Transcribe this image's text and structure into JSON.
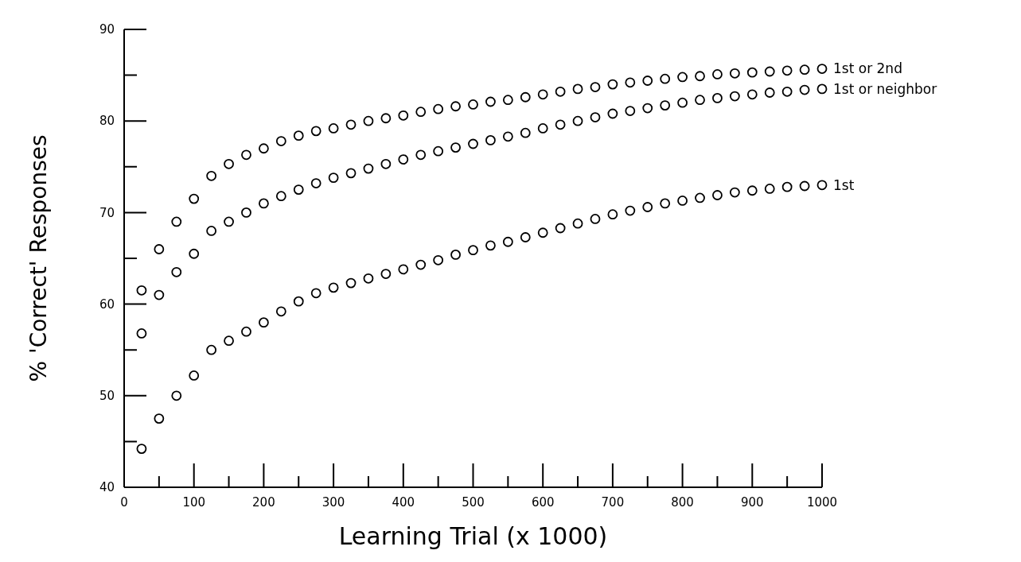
{
  "chart_data": {
    "type": "scatter",
    "xlabel": "Learning Trial (x 1000)",
    "ylabel": "% 'Correct' Responses",
    "xlim": [
      0,
      1000
    ],
    "ylim": [
      40,
      90
    ],
    "xticks": [
      0,
      {
        "value": 50,
        "label": null
      },
      100,
      {
        "value": 150,
        "label": null
      },
      200,
      {
        "value": 250,
        "label": null
      },
      300,
      {
        "value": 350,
        "label": null
      },
      400,
      {
        "value": 450,
        "label": null
      },
      500,
      {
        "value": 550,
        "label": null
      },
      600,
      {
        "value": 650,
        "label": null
      },
      700,
      {
        "value": 750,
        "label": null
      },
      800,
      {
        "value": 850,
        "label": null
      },
      900,
      {
        "value": 950,
        "label": null
      },
      1000
    ],
    "yticks": [
      40,
      {
        "value": 45,
        "label": null
      },
      50,
      {
        "value": 55,
        "label": null
      },
      60,
      {
        "value": 65,
        "label": null
      },
      70,
      {
        "value": 75,
        "label": null
      },
      80,
      {
        "value": 85,
        "label": null
      },
      90
    ],
    "marker": "circle",
    "grid": false,
    "x": [
      25,
      50,
      75,
      100,
      125,
      150,
      175,
      200,
      225,
      250,
      275,
      300,
      325,
      350,
      375,
      400,
      425,
      450,
      475,
      500,
      525,
      550,
      575,
      600,
      625,
      650,
      675,
      700,
      725,
      750,
      775,
      800,
      825,
      850,
      875,
      900,
      925,
      950,
      975,
      1000
    ],
    "series": [
      {
        "name": "1st or 2nd",
        "color": "#000000",
        "values": [
          61.5,
          66,
          69,
          71.5,
          74,
          75.3,
          76.3,
          77,
          77.8,
          78.4,
          78.9,
          79.2,
          79.6,
          80,
          80.3,
          80.6,
          81,
          81.3,
          81.6,
          81.8,
          82.1,
          82.3,
          82.6,
          82.9,
          83.2,
          83.5,
          83.7,
          84,
          84.2,
          84.4,
          84.6,
          84.8,
          84.9,
          85.1,
          85.2,
          85.3,
          85.4,
          85.5,
          85.6,
          85.7
        ]
      },
      {
        "name": "1st or neighbor",
        "color": "#000000",
        "values": [
          56.8,
          61,
          63.5,
          65.5,
          68,
          69,
          70,
          71,
          71.8,
          72.5,
          73.2,
          73.8,
          74.3,
          74.8,
          75.3,
          75.8,
          76.3,
          76.7,
          77.1,
          77.5,
          77.9,
          78.3,
          78.7,
          79.2,
          79.6,
          80,
          80.4,
          80.8,
          81.1,
          81.4,
          81.7,
          82,
          82.3,
          82.5,
          82.7,
          82.9,
          83.1,
          83.2,
          83.4,
          83.5
        ]
      },
      {
        "name": "1st",
        "color": "#000000",
        "values": [
          44.2,
          47.5,
          50,
          52.2,
          55,
          56,
          57,
          58,
          59.2,
          60.3,
          61.2,
          61.8,
          62.3,
          62.8,
          63.3,
          63.8,
          64.3,
          64.8,
          65.4,
          65.9,
          66.4,
          66.8,
          67.3,
          67.8,
          68.3,
          68.8,
          69.3,
          69.8,
          70.2,
          70.6,
          71,
          71.3,
          71.6,
          71.9,
          72.2,
          72.4,
          72.6,
          72.8,
          72.9,
          73
        ]
      }
    ]
  }
}
